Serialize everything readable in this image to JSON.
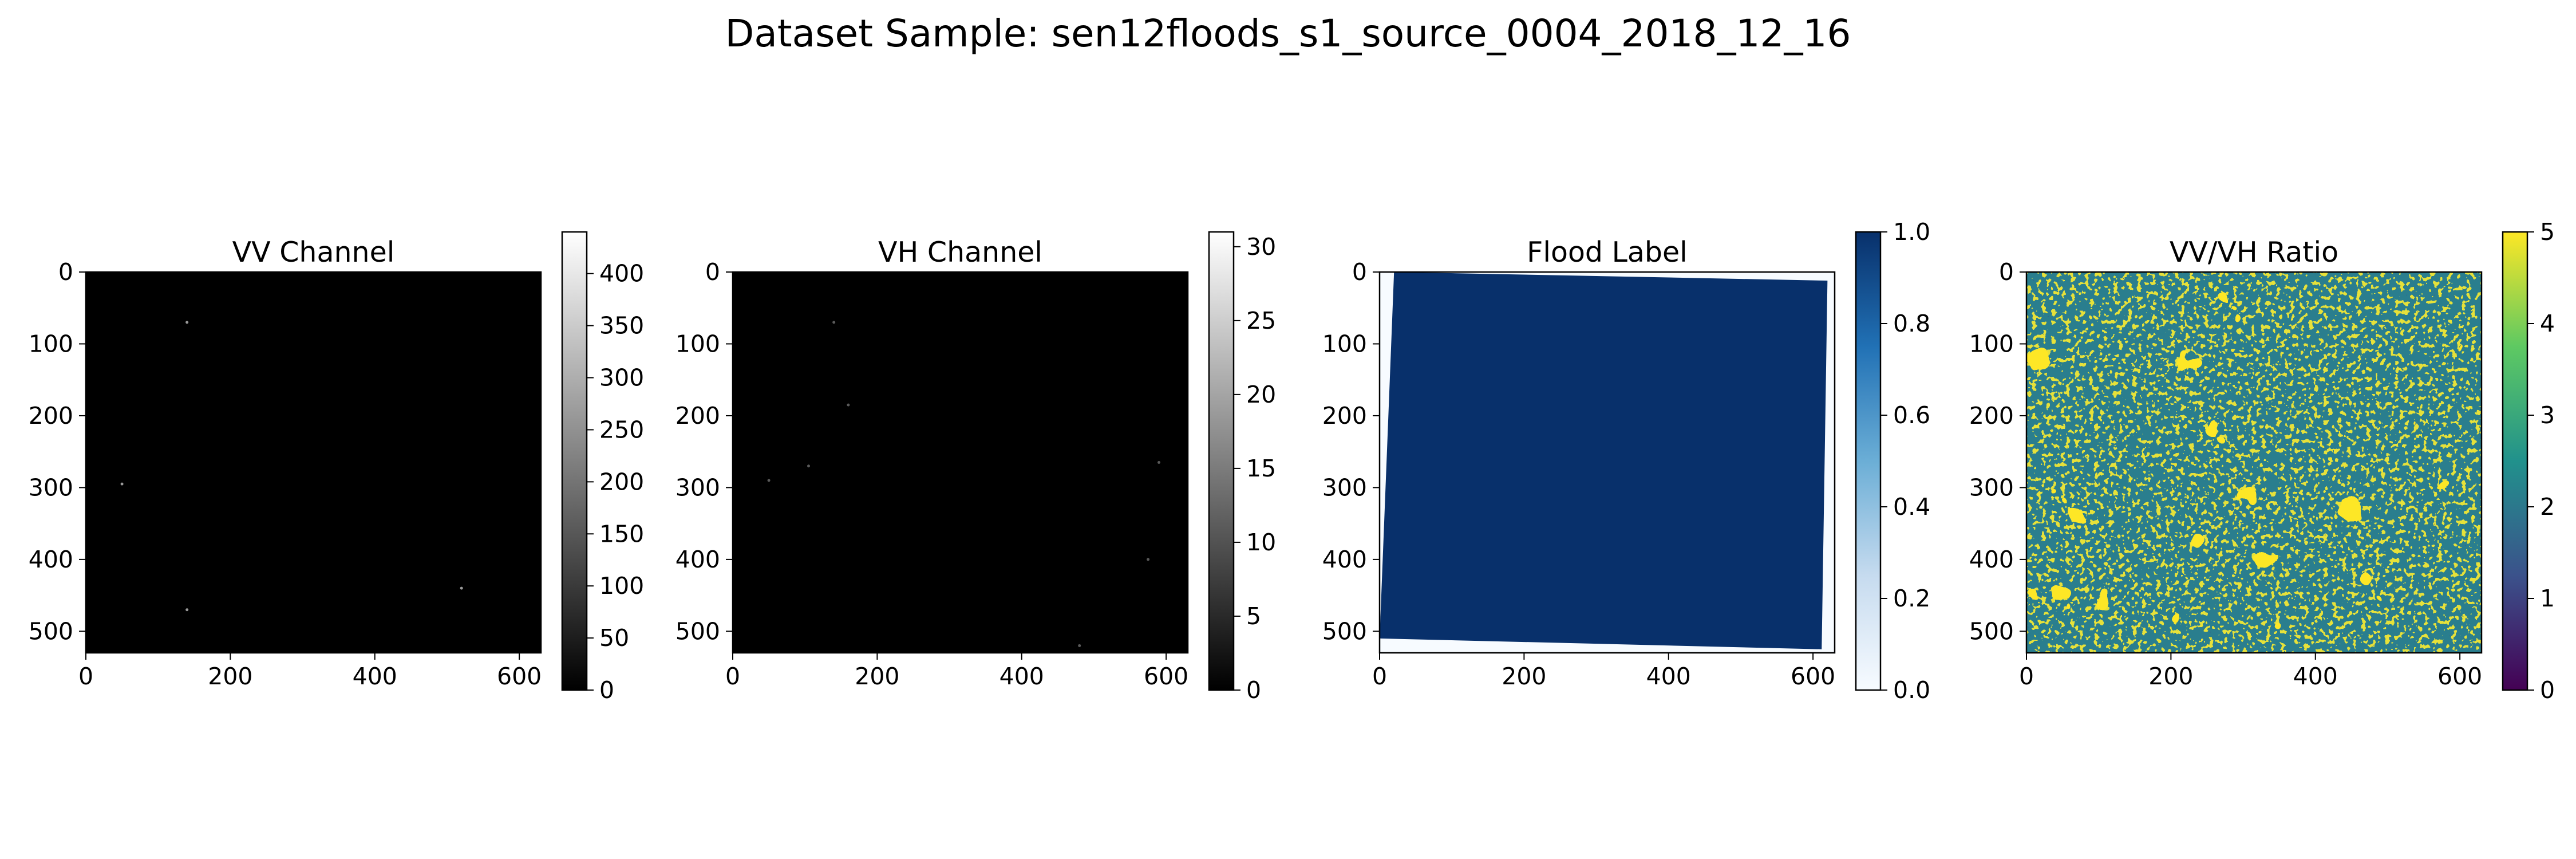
{
  "suptitle": "Dataset Sample: sen12floods_s1_source_0004_2018_12_16",
  "chart_data": [
    {
      "type": "heatmap",
      "title": "VV Channel",
      "colormap": "gray",
      "image_extent": {
        "x": [
          0,
          630
        ],
        "y": [
          0,
          530
        ]
      },
      "xticks": [
        "0",
        "200",
        "400",
        "600"
      ],
      "yticks": [
        "0",
        "100",
        "200",
        "300",
        "400",
        "500"
      ],
      "colorbar": {
        "range": [
          0,
          440
        ],
        "ticks": [
          "0",
          "50",
          "100",
          "150",
          "200",
          "250",
          "300",
          "350",
          "400"
        ],
        "colors": [
          "#000000",
          "#ffffff"
        ]
      },
      "content": "nearly uniform black, values near 0 with a few isolated bright specks"
    },
    {
      "type": "heatmap",
      "title": "VH Channel",
      "colormap": "gray",
      "image_extent": {
        "x": [
          0,
          630
        ],
        "y": [
          0,
          530
        ]
      },
      "xticks": [
        "0",
        "200",
        "400",
        "600"
      ],
      "yticks": [
        "0",
        "100",
        "200",
        "300",
        "400",
        "500"
      ],
      "colorbar": {
        "range": [
          0,
          31
        ],
        "ticks": [
          "0",
          "5",
          "10",
          "15",
          "20",
          "25",
          "30"
        ],
        "colors": [
          "#000000",
          "#ffffff"
        ]
      },
      "content": "nearly uniform black, values near 0 with a few isolated bright specks"
    },
    {
      "type": "heatmap",
      "title": "Flood Label",
      "colormap": "Blues",
      "image_extent": {
        "x": [
          0,
          630
        ],
        "y": [
          0,
          530
        ]
      },
      "xticks": [
        "0",
        "200",
        "400",
        "600"
      ],
      "yticks": [
        "0",
        "100",
        "200",
        "300",
        "400",
        "500"
      ],
      "colorbar": {
        "range": [
          0,
          1
        ],
        "ticks": [
          "0.0",
          "0.2",
          "0.4",
          "0.6",
          "0.8",
          "1.0"
        ],
        "colors": [
          "#f7fbff",
          "#c6dbef",
          "#6baed6",
          "#2171b5",
          "#08306b"
        ]
      },
      "content": "value 1.0 over a slightly rotated quadrilateral covering almost the whole image; 0 in thin border slivers",
      "flood_polygon": [
        [
          20,
          0
        ],
        [
          620,
          12
        ],
        [
          612,
          525
        ],
        [
          0,
          510
        ]
      ]
    },
    {
      "type": "heatmap",
      "title": "VV/VH Ratio",
      "colormap": "viridis",
      "image_extent": {
        "x": [
          0,
          630
        ],
        "y": [
          0,
          530
        ]
      },
      "xticks": [
        "0",
        "200",
        "400",
        "600"
      ],
      "yticks": [
        "0",
        "100",
        "200",
        "300",
        "400",
        "500"
      ],
      "colorbar": {
        "range": [
          0,
          5
        ],
        "ticks": [
          "0",
          "1",
          "2",
          "3",
          "4",
          "5"
        ],
        "colors": [
          "#440154",
          "#3b528b",
          "#21918c",
          "#5ec962",
          "#fde725"
        ]
      },
      "content": "speckled mix of yellow (about 5) and blue-green (about 1-2) values with larger yellow patches"
    }
  ]
}
